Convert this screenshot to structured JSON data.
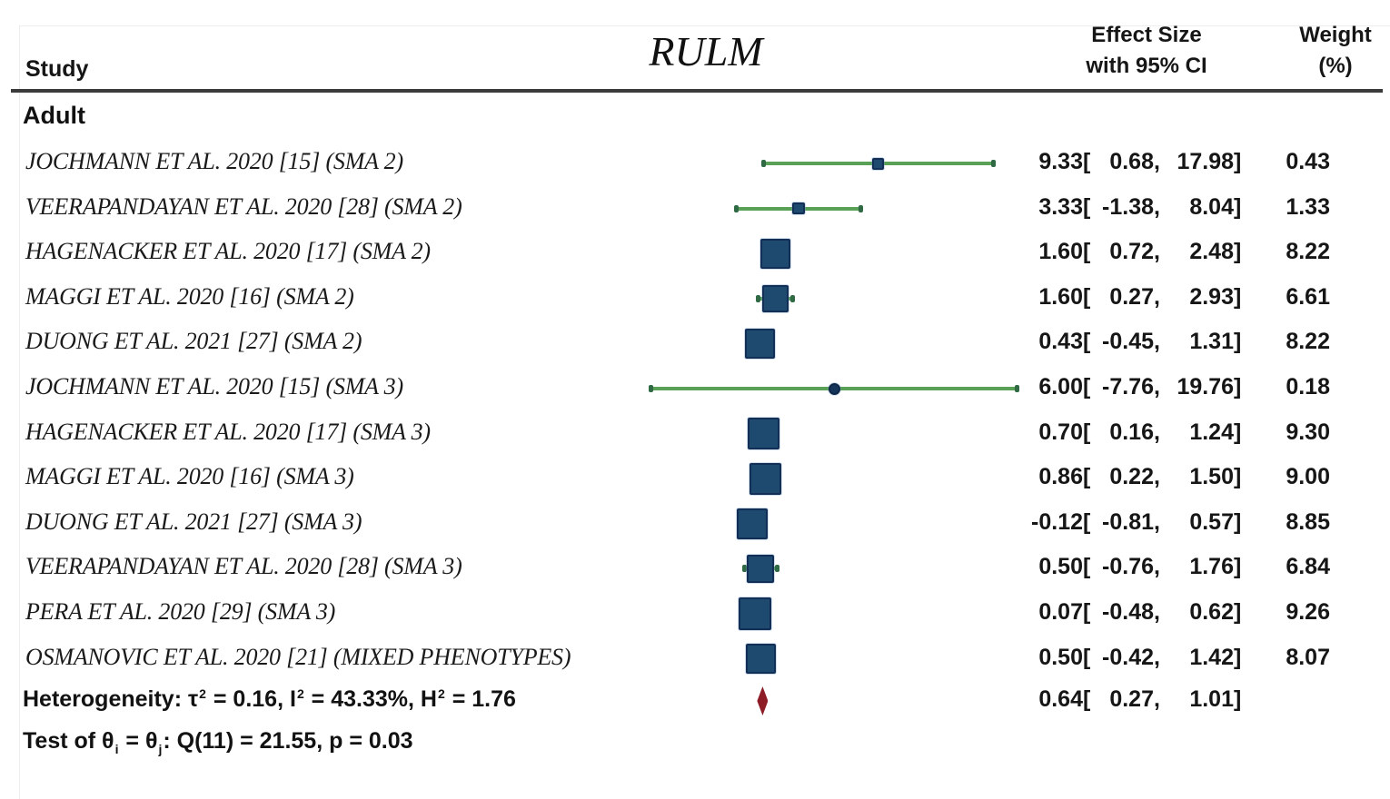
{
  "figure": {
    "group_label": "Adult"
  },
  "columns": {
    "study": "Study",
    "effect_line1": "Effect Size",
    "effect_line2": "with 95% CI",
    "weight_line1": "Weight",
    "weight_line2": "(%)"
  },
  "format": {
    "open_bracket": "[",
    "close_bracket": "]",
    "comma": ","
  },
  "colors": {
    "marker_fill": "#1f4a70",
    "marker_border": "#142f55",
    "ci_line_green": "#58a156",
    "ci_cap_green": "#2f6a45",
    "overall_diamond_red": "#8e1c27",
    "header_rule_gray": "#3b3b3b"
  },
  "chart_data": {
    "type": "forest",
    "title": "RULM",
    "group": "Adult",
    "xlim": [
      -7.76,
      19.76
    ],
    "effect_column_header": "Effect Size with 95% CI",
    "weight_column_header": "Weight (%)",
    "studies": [
      {
        "label": "JOCHMANN ET AL. 2020 [15] (SMA 2)",
        "est": 9.33,
        "lo": 0.68,
        "hi": 17.98,
        "weight": 0.43,
        "marker": "square"
      },
      {
        "label": "VEERAPANDAYAN ET AL. 2020 [28] (SMA 2)",
        "est": 3.33,
        "lo": -1.38,
        "hi": 8.04,
        "weight": 1.33,
        "marker": "square"
      },
      {
        "label": "HAGENACKER ET AL. 2020 [17] (SMA 2)",
        "est": 1.6,
        "lo": 0.72,
        "hi": 2.48,
        "weight": 8.22,
        "marker": "square"
      },
      {
        "label": "MAGGI ET AL. 2020 [16] (SMA 2)",
        "est": 1.6,
        "lo": 0.27,
        "hi": 2.93,
        "weight": 6.61,
        "marker": "square"
      },
      {
        "label": "DUONG ET AL. 2021 [27] (SMA 2)",
        "est": 0.43,
        "lo": -0.45,
        "hi": 1.31,
        "weight": 8.22,
        "marker": "square"
      },
      {
        "label": "JOCHMANN ET AL. 2020 [15] (SMA 3)",
        "est": 6.0,
        "lo": -7.76,
        "hi": 19.76,
        "weight": 0.18,
        "marker": "circle"
      },
      {
        "label": "HAGENACKER ET AL. 2020 [17] (SMA 3)",
        "est": 0.7,
        "lo": 0.16,
        "hi": 1.24,
        "weight": 9.3,
        "marker": "square"
      },
      {
        "label": "MAGGI ET AL. 2020 [16] (SMA 3)",
        "est": 0.86,
        "lo": 0.22,
        "hi": 1.5,
        "weight": 9.0,
        "marker": "square"
      },
      {
        "label": "DUONG ET AL. 2021 [27] (SMA 3)",
        "est": -0.12,
        "lo": -0.81,
        "hi": 0.57,
        "weight": 8.85,
        "marker": "square"
      },
      {
        "label": "VEERAPANDAYAN ET AL. 2020 [28] (SMA 3)",
        "est": 0.5,
        "lo": -0.76,
        "hi": 1.76,
        "weight": 6.84,
        "marker": "square"
      },
      {
        "label": "PERA ET AL. 2020 [29] (SMA 3)",
        "est": 0.07,
        "lo": -0.48,
        "hi": 0.62,
        "weight": 9.26,
        "marker": "square"
      },
      {
        "label": "OSMANOVIC ET AL. 2020 [21] (MIXED PHENOTYPES)",
        "est": 0.5,
        "lo": -0.42,
        "hi": 1.42,
        "weight": 8.07,
        "marker": "square"
      }
    ],
    "overall": {
      "est": 0.64,
      "lo": 0.27,
      "hi": 1.01
    },
    "heterogeneity_text": "Heterogeneity: τ² = 0.16, I² = 43.33%, H² = 1.76",
    "test_text": "Test of θi = θj: Q(11) = 21.55, p = 0.03"
  },
  "stats": {
    "heterogeneity_segments": [
      {
        "t": "Heterogeneity: τ"
      },
      {
        "t": "2",
        "style": "sup"
      },
      {
        "t": " = 0.16, I"
      },
      {
        "t": "2",
        "style": "sup"
      },
      {
        "t": " = 43.33%, H"
      },
      {
        "t": "2",
        "style": "sup"
      },
      {
        "t": " = 1.76"
      }
    ],
    "test_segments": [
      {
        "t": "Test of θ"
      },
      {
        "t": "i",
        "style": "sub"
      },
      {
        "t": " = θ"
      },
      {
        "t": "j",
        "style": "sub"
      },
      {
        "t": ": Q(11) = 21.55, p = 0.03"
      }
    ]
  }
}
